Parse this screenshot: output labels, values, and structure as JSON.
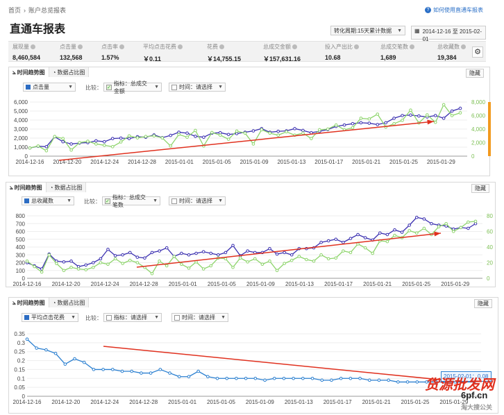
{
  "breadcrumb": {
    "home": "首页",
    "sep": "›",
    "current": "账户总览报表"
  },
  "help": {
    "label": "如何使用直通车报表",
    "icon": "question-icon"
  },
  "page_title": "直通车报表",
  "controls": {
    "conversion": "转化周期:15天累计数据",
    "date_start": "2014-12-16",
    "date_to": "至",
    "date_end": "2015-02-01"
  },
  "stats": [
    {
      "label": "展现量",
      "value": "8,460,584"
    },
    {
      "label": "点击量",
      "value": "132,568"
    },
    {
      "label": "点击率",
      "value": "1.57%"
    },
    {
      "label": "平均点击花费",
      "value": "￥0.11"
    },
    {
      "label": "花费",
      "value": "￥14,755.15"
    },
    {
      "label": "总成交金额",
      "value": "￥157,631.16"
    },
    {
      "label": "投入产出比",
      "value": "10.68"
    },
    {
      "label": "总成交笔数",
      "value": "1,689"
    },
    {
      "label": "总收藏数",
      "value": "19,384"
    }
  ],
  "tabs": {
    "trend": "时间趋势图",
    "share": "数据占比图",
    "hide": "隐藏"
  },
  "compare_label": "比较：",
  "time_label": "时间：请选择",
  "x_labels": [
    "2014-12-16",
    "2014-12-20",
    "2014-12-24",
    "2014-12-28",
    "2015-01-01",
    "2015-01-05",
    "2015-01-09",
    "2015-01-13",
    "2015-01-17",
    "2015-01-21",
    "2015-01-25",
    "2015-01-29"
  ],
  "panels": [
    {
      "metric": "点击量",
      "compare": "指标：总成交金额",
      "compare_on": true,
      "left_ticks": [
        "6,000",
        "5,000",
        "4,000",
        "3,000",
        "2,000",
        "1,000",
        "0"
      ],
      "right_ticks": [
        "8,000",
        "6,000",
        "4,000",
        "2,000",
        "0"
      ],
      "chart_data": {
        "type": "line",
        "x_start": "2014-12-16",
        "x_end": "2015-01-31",
        "series": [
          {
            "name": "点击量",
            "axis": "left",
            "color": "#3a2fb0",
            "values": [
              900,
              1100,
              1050,
              2150,
              1600,
              1350,
              1450,
              1500,
              1700,
              1600,
              1950,
              2000,
              1950,
              2150,
              2100,
              2350,
              2050,
              2300,
              2650,
              2550,
              2200,
              2100,
              2550,
              2600,
              2400,
              2500,
              2650,
              2800,
              3050,
              2650,
              2750,
              2800,
              3050,
              2850,
              2600,
              2750,
              2950,
              3300,
              3450,
              3600,
              3700,
              3650,
              3500,
              3700,
              4200,
              4500,
              4550,
              4450,
              4350,
              4500,
              4200,
              5000,
              5300
            ]
          },
          {
            "name": "总成交金额",
            "axis": "right",
            "color": "#8dd46b",
            "values": [
              1200,
              1500,
              800,
              2900,
              2600,
              900,
              2000,
              2200,
              1800,
              1600,
              1400,
              2100,
              3000,
              2700,
              2900,
              3000,
              2700,
              1500,
              3200,
              2800,
              3800,
              1500,
              3500,
              3100,
              2500,
              3700,
              3400,
              1800,
              3900,
              3400,
              3100,
              3600,
              3100,
              3400,
              2600,
              3900,
              4000,
              4600,
              3900,
              4200,
              5600,
              5500,
              6200,
              4300,
              4800,
              5300,
              6800,
              4900,
              6100,
              5000,
              7600,
              6000,
              6400
            ]
          }
        ]
      }
    },
    {
      "metric": "总收藏数",
      "compare": "指标：总成交笔数",
      "compare_on": true,
      "left_ticks": [
        "800",
        "700",
        "600",
        "500",
        "400",
        "300",
        "200",
        "100",
        "0"
      ],
      "right_ticks": [
        "80",
        "60",
        "40",
        "20",
        "0"
      ],
      "chart_data": {
        "type": "line",
        "x_start": "2014-12-16",
        "x_end": "2015-01-31",
        "series": [
          {
            "name": "总收藏数",
            "axis": "left",
            "color": "#3a2fb0",
            "values": [
              200,
              160,
              120,
              310,
              220,
              210,
              220,
              150,
              170,
              200,
              250,
              370,
              290,
              300,
              330,
              270,
              260,
              330,
              350,
              390,
              280,
              320,
              300,
              320,
              340,
              320,
              300,
              330,
              420,
              290,
              350,
              330,
              330,
              380,
              310,
              330,
              300,
              380,
              380,
              390,
              460,
              480,
              500,
              460,
              510,
              560,
              520,
              490,
              580,
              560,
              620,
              590,
              680,
              780,
              760,
              700,
              680,
              670,
              630,
              650,
              640,
              700
            ]
          },
          {
            "name": "总成交笔数",
            "axis": "right",
            "color": "#8dd46b",
            "values": [
              22,
              15,
              8,
              30,
              19,
              10,
              14,
              12,
              11,
              14,
              20,
              18,
              25,
              19,
              23,
              20,
              14,
              6,
              22,
              16,
              28,
              18,
              13,
              21,
              12,
              16,
              26,
              25,
              14,
              26,
              21,
              25,
              18,
              22,
              10,
              19,
              23,
              28,
              24,
              22,
              30,
              25,
              26,
              35,
              33,
              44,
              39,
              32,
              48,
              47,
              55,
              52,
              61,
              58,
              64,
              56,
              66,
              70,
              60,
              65,
              72,
              73
            ]
          }
        ]
      }
    },
    {
      "metric": "平均点击花费",
      "compare": "指标：请选择",
      "compare_on": false,
      "left_ticks": [
        "0.35",
        "0.3",
        "0.25",
        "0.2",
        "0.15",
        "0.1",
        "0.05",
        "0"
      ],
      "tooltip": "2015-02-01：0.08",
      "chart_data": {
        "type": "line",
        "x_start": "2014-12-16",
        "x_end": "2015-02-01",
        "series": [
          {
            "name": "平均点击花费",
            "axis": "left",
            "color": "#2a7fd0",
            "values": [
              0.32,
              0.27,
              0.26,
              0.24,
              0.18,
              0.21,
              0.19,
              0.15,
              0.15,
              0.15,
              0.14,
              0.14,
              0.13,
              0.13,
              0.15,
              0.13,
              0.11,
              0.11,
              0.14,
              0.11,
              0.1,
              0.1,
              0.1,
              0.1,
              0.1,
              0.09,
              0.1,
              0.1,
              0.1,
              0.1,
              0.1,
              0.09,
              0.09,
              0.1,
              0.1,
              0.1,
              0.09,
              0.09,
              0.09,
              0.08,
              0.08,
              0.08,
              0.08,
              0.08,
              0.08,
              0.08,
              0.08,
              0.08
            ]
          }
        ]
      }
    }
  ],
  "watermark": {
    "text": "货源批发网",
    "site": "6pf.cn",
    "footer": "淘大搜公关"
  }
}
